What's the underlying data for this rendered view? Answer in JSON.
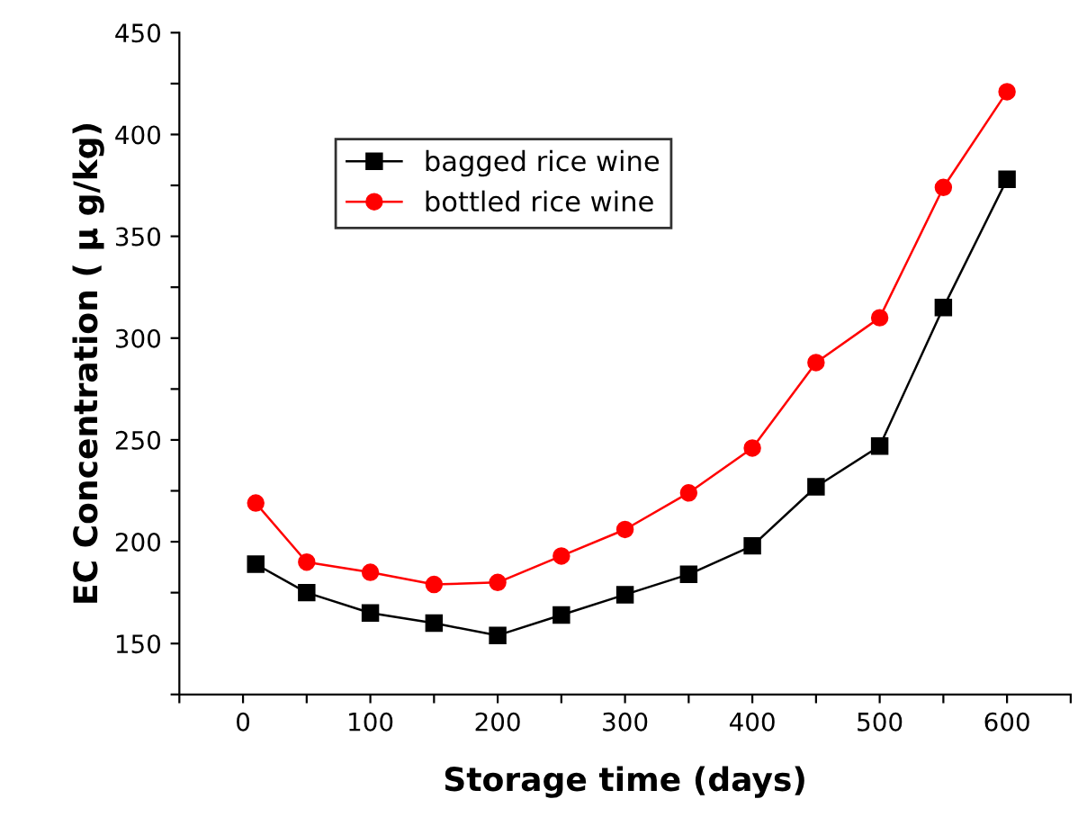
{
  "chart_data": {
    "type": "line",
    "xlabel": "Storage time (days)",
    "ylabel": "EC Concentration ( μ g/kg)",
    "x": [
      10,
      50,
      100,
      150,
      200,
      250,
      300,
      350,
      400,
      450,
      500,
      550,
      600
    ],
    "series": [
      {
        "name": "bagged rice wine",
        "color": "#000000",
        "marker": "square",
        "values": [
          189,
          175,
          165,
          160,
          154,
          164,
          174,
          184,
          198,
          227,
          247,
          315,
          378
        ]
      },
      {
        "name": "bottled rice wine",
        "color": "#ff0000",
        "marker": "circle",
        "values": [
          219,
          190,
          185,
          179,
          180,
          193,
          206,
          224,
          246,
          288,
          310,
          374,
          421
        ]
      }
    ],
    "xlim": [
      -50,
      650
    ],
    "ylim": [
      125,
      450
    ],
    "xticks": [
      {
        "value": -50,
        "label": null
      },
      0,
      {
        "value": 50,
        "label": null
      },
      100,
      {
        "value": 150,
        "label": null
      },
      200,
      {
        "value": 250,
        "label": null
      },
      300,
      {
        "value": 350,
        "label": null
      },
      400,
      {
        "value": 450,
        "label": null
      },
      500,
      {
        "value": 550,
        "label": null
      },
      600,
      {
        "value": 650,
        "label": null
      }
    ],
    "yticks": [
      {
        "value": 125,
        "label": null
      },
      150,
      {
        "value": 175,
        "label": null
      },
      200,
      {
        "value": 225,
        "label": null
      },
      250,
      {
        "value": 275,
        "label": null
      },
      300,
      {
        "value": 325,
        "label": null
      },
      350,
      {
        "value": 375,
        "label": null
      },
      400,
      {
        "value": 425,
        "label": null
      },
      450
    ],
    "grid": false,
    "legend": "top left",
    "line_style": "solid"
  }
}
